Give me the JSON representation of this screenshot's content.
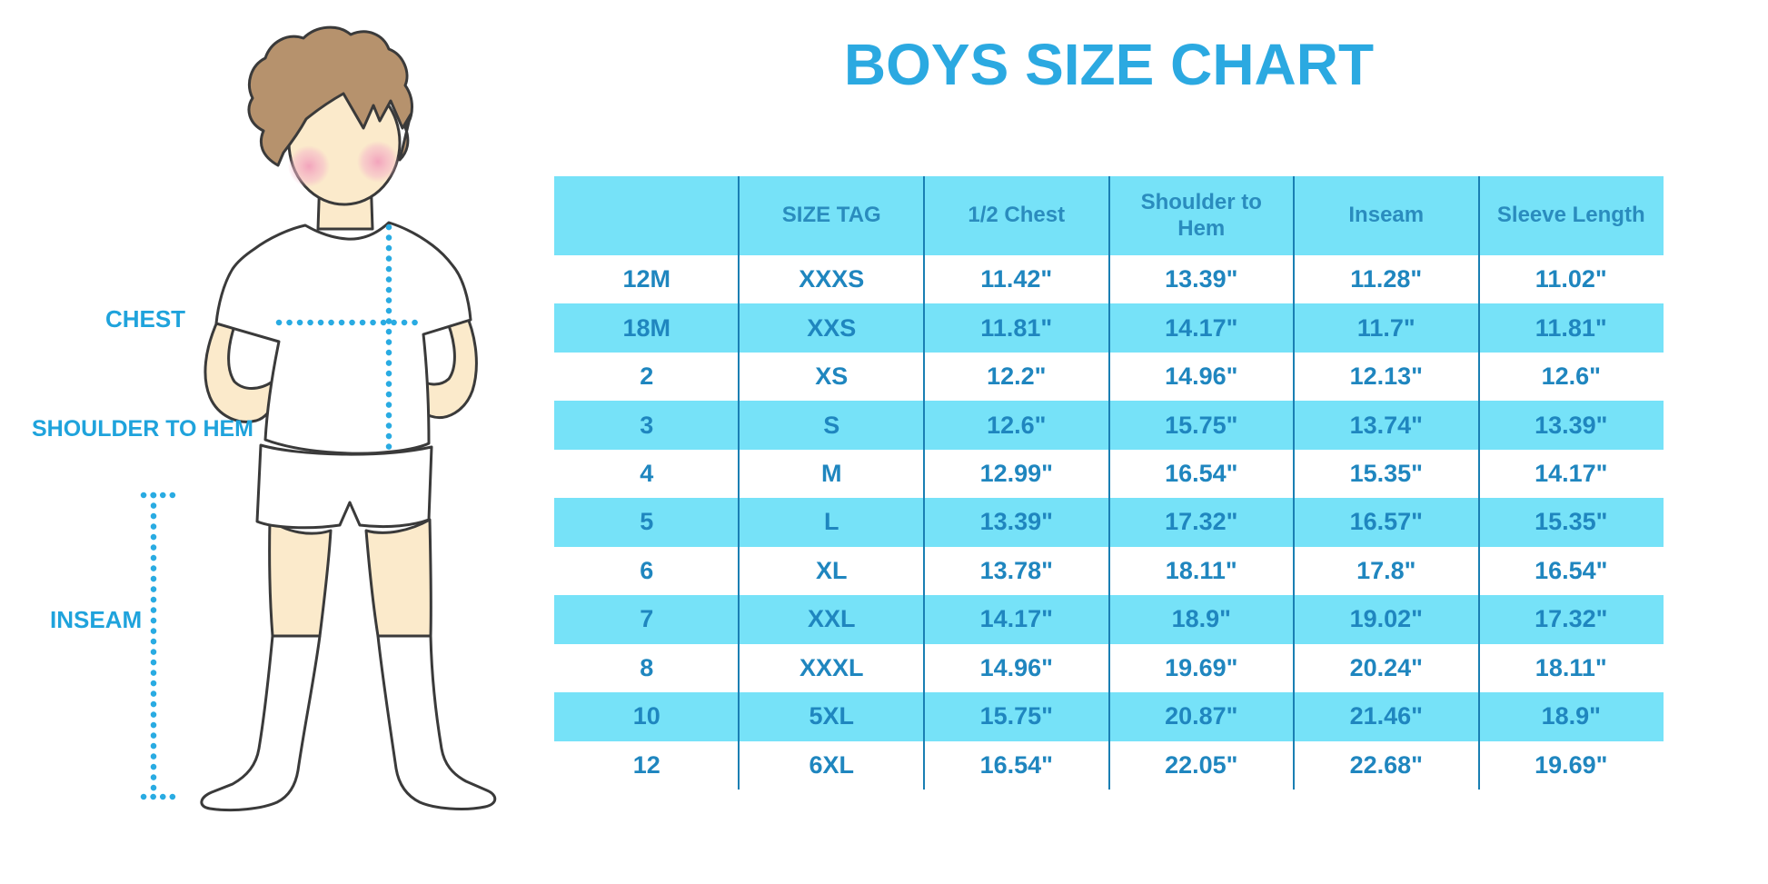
{
  "title": "BOYS SIZE CHART",
  "diagram": {
    "chest_label": "CHEST",
    "shoulder_to_hem_label": "SHOULDER TO HEM",
    "inseam_label": "INSEAM",
    "figure": "boy-in-tshirt-shorts-and-knee-socks"
  },
  "colors": {
    "title_blue": "#2BA9E1",
    "label_blue": "#1FA3DC",
    "band_blue": "#76E2F8",
    "divider_blue": "#1A7FB3",
    "header_text": "#2A8CBE",
    "cell_text": "#1F86BF",
    "dotted_line": "#29ABE2",
    "skin": "#FBEACB",
    "hair": "#B6926D"
  },
  "chart_data": {
    "type": "table",
    "title": "BOYS SIZE CHART",
    "columns": [
      "",
      "SIZE TAG",
      "1/2 Chest",
      "Shoulder to Hem",
      "Inseam",
      "Sleeve Length"
    ],
    "rows": [
      [
        "12M",
        "XXXS",
        "11.42\"",
        "13.39\"",
        "11.28\"",
        "11.02\""
      ],
      [
        "18M",
        "XXS",
        "11.81\"",
        "14.17\"",
        "11.7\"",
        "11.81\""
      ],
      [
        "2",
        "XS",
        "12.2\"",
        "14.96\"",
        "12.13\"",
        "12.6\""
      ],
      [
        "3",
        "S",
        "12.6\"",
        "15.75\"",
        "13.74\"",
        "13.39\""
      ],
      [
        "4",
        "M",
        "12.99\"",
        "16.54\"",
        "15.35\"",
        "14.17\""
      ],
      [
        "5",
        "L",
        "13.39\"",
        "17.32\"",
        "16.57\"",
        "15.35\""
      ],
      [
        "6",
        "XL",
        "13.78\"",
        "18.11\"",
        "17.8\"",
        "16.54\""
      ],
      [
        "7",
        "XXL",
        "14.17\"",
        "18.9\"",
        "19.02\"",
        "17.32\""
      ],
      [
        "8",
        "XXXL",
        "14.96\"",
        "19.69\"",
        "20.24\"",
        "18.11\""
      ],
      [
        "10",
        "5XL",
        "15.75\"",
        "20.87\"",
        "21.46\"",
        "18.9\""
      ],
      [
        "12",
        "6XL",
        "16.54\"",
        "22.05\"",
        "22.68\"",
        "19.69\""
      ]
    ],
    "highlighted_rows": [
      false,
      true,
      false,
      true,
      false,
      true,
      false,
      true,
      false,
      true,
      false
    ],
    "units": "inches",
    "layout": {
      "grid": "alternating-row-bands",
      "column_dividers": true,
      "horizontal_lines": false
    }
  }
}
